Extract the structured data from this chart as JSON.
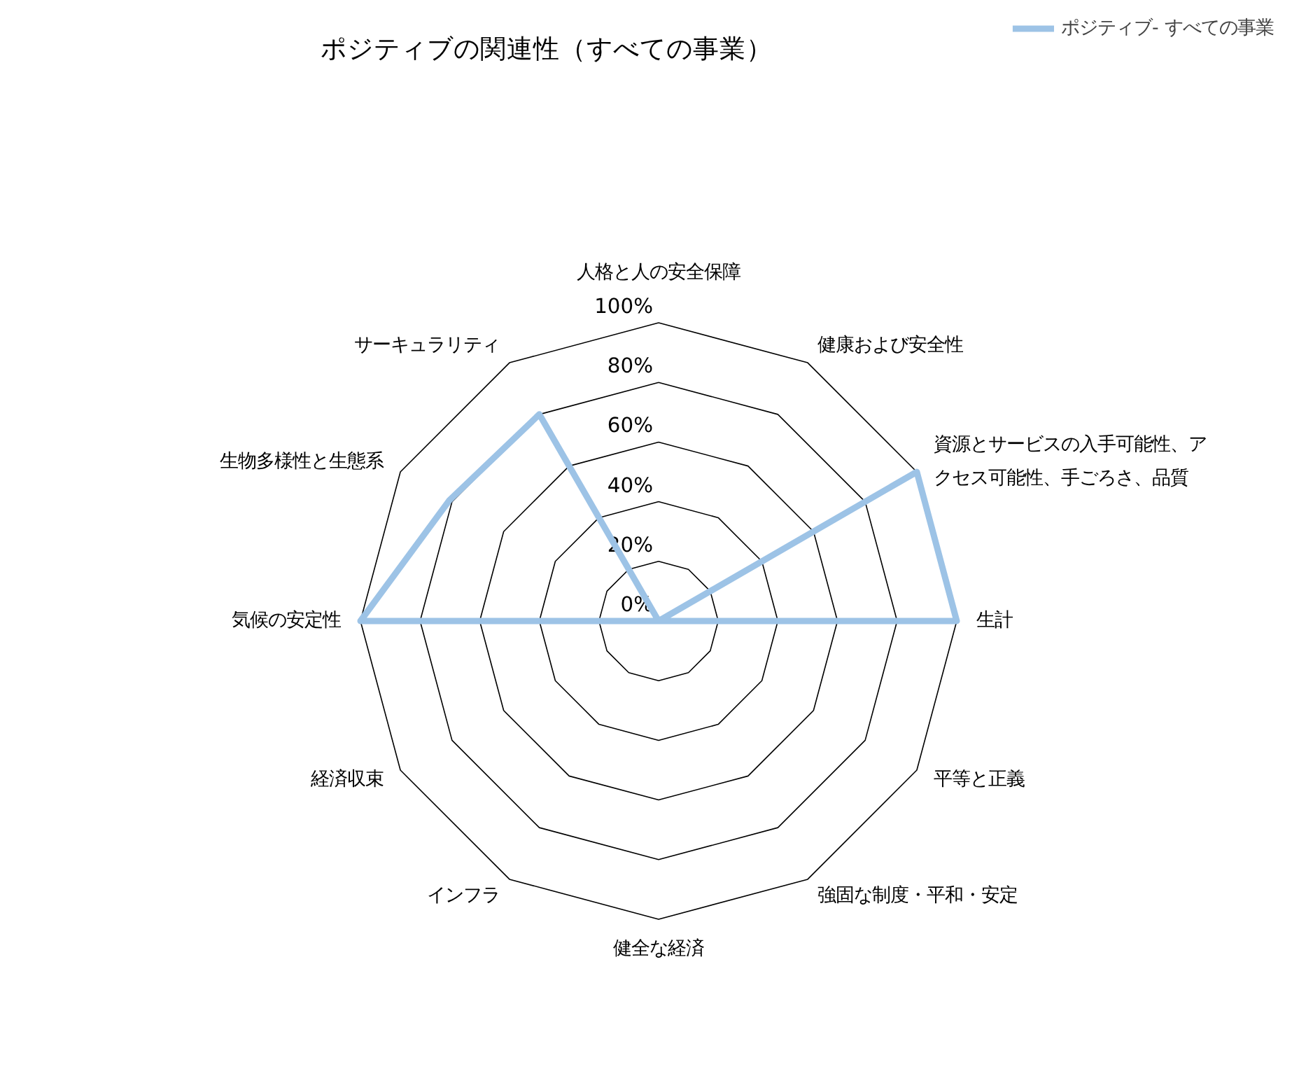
{
  "chart_data": {
    "type": "radar",
    "title": "ポジティブの関連性（すべての事業）",
    "categories": [
      "人格と人の安全保障",
      "健康および安全性",
      "資源とサービスの入手可能性、アクセス可能性、手ごろさ、品質",
      "生計",
      "平等と正義",
      "強固な制度・平和・安定",
      "健全な経済",
      "インフラ",
      "経済収束",
      "気候の安定性",
      "生物多様性と生態系",
      "サーキュラリティ"
    ],
    "series": [
      {
        "name": "ポジティブ- すべての事業",
        "color": "#9dc3e6",
        "values": [
          0,
          0,
          100,
          100,
          0,
          0,
          0,
          0,
          0,
          100,
          81,
          80
        ]
      }
    ],
    "ylim": [
      0,
      100
    ],
    "yticks": [
      {
        "value": 0,
        "label": "0%"
      },
      {
        "value": 20,
        "label": "20%"
      },
      {
        "value": 40,
        "label": "40%"
      },
      {
        "value": 60,
        "label": "60%"
      },
      {
        "value": 80,
        "label": "80%"
      },
      {
        "value": 100,
        "label": "100%"
      }
    ],
    "legend": "top right",
    "marker": "none",
    "line_style": "solid"
  }
}
